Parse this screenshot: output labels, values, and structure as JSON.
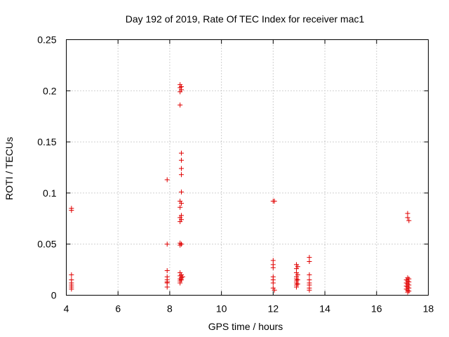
{
  "chart_data": {
    "type": "scatter",
    "title": "Day 192 of 2019, Rate Of TEC Index for receiver mac1",
    "xlabel": "GPS time / hours",
    "ylabel": "ROTI / TECUs",
    "xlim": [
      4,
      18
    ],
    "ylim": [
      0,
      0.25
    ],
    "x_ticks": [
      4,
      6,
      8,
      10,
      12,
      14,
      16,
      18
    ],
    "x_tick_labels": [
      "4",
      "6",
      "8",
      "10",
      "12",
      "14",
      "16",
      "18"
    ],
    "y_ticks": [
      0,
      0.05,
      0.1,
      0.15,
      0.2,
      0.25
    ],
    "y_tick_labels": [
      "0",
      "0.05",
      "0.1",
      "0.15",
      "0.2",
      "0.25"
    ],
    "grid": true,
    "marker": "+",
    "color": "#e00000",
    "series": [
      {
        "points": [
          [
            4.2,
            0.085
          ],
          [
            4.2,
            0.083
          ],
          [
            4.2,
            0.02
          ],
          [
            4.2,
            0.015
          ],
          [
            4.2,
            0.012
          ],
          [
            4.2,
            0.01
          ],
          [
            4.2,
            0.008
          ],
          [
            4.2,
            0.006
          ],
          [
            7.9,
            0.113
          ],
          [
            7.9,
            0.05
          ],
          [
            7.9,
            0.024
          ],
          [
            7.9,
            0.018
          ],
          [
            7.9,
            0.015
          ],
          [
            7.9,
            0.013
          ],
          [
            7.9,
            0.012
          ],
          [
            7.9,
            0.008
          ],
          [
            8.4,
            0.206
          ],
          [
            8.45,
            0.204
          ],
          [
            8.4,
            0.203
          ],
          [
            8.45,
            0.201
          ],
          [
            8.4,
            0.199
          ],
          [
            8.4,
            0.186
          ],
          [
            8.45,
            0.139
          ],
          [
            8.45,
            0.132
          ],
          [
            8.45,
            0.124
          ],
          [
            8.45,
            0.118
          ],
          [
            8.45,
            0.101
          ],
          [
            8.4,
            0.092
          ],
          [
            8.45,
            0.09
          ],
          [
            8.4,
            0.086
          ],
          [
            8.45,
            0.078
          ],
          [
            8.4,
            0.076
          ],
          [
            8.45,
            0.074
          ],
          [
            8.4,
            0.072
          ],
          [
            8.4,
            0.051
          ],
          [
            8.45,
            0.05
          ],
          [
            8.4,
            0.049
          ],
          [
            8.4,
            0.022
          ],
          [
            8.45,
            0.02
          ],
          [
            8.4,
            0.019
          ],
          [
            8.5,
            0.018
          ],
          [
            8.45,
            0.017
          ],
          [
            8.4,
            0.016
          ],
          [
            8.45,
            0.015
          ],
          [
            8.4,
            0.014
          ],
          [
            8.4,
            0.012
          ],
          [
            12.0,
            0.092
          ],
          [
            12.05,
            0.092
          ],
          [
            12.0,
            0.034
          ],
          [
            12.0,
            0.03
          ],
          [
            12.0,
            0.027
          ],
          [
            12.0,
            0.018
          ],
          [
            12.0,
            0.015
          ],
          [
            12.0,
            0.012
          ],
          [
            12.0,
            0.007
          ],
          [
            12.05,
            0.005
          ],
          [
            12.9,
            0.03
          ],
          [
            12.95,
            0.028
          ],
          [
            12.9,
            0.026
          ],
          [
            12.9,
            0.022
          ],
          [
            12.95,
            0.02
          ],
          [
            12.9,
            0.018
          ],
          [
            12.9,
            0.016
          ],
          [
            12.95,
            0.015
          ],
          [
            12.9,
            0.014
          ],
          [
            12.9,
            0.012
          ],
          [
            12.95,
            0.011
          ],
          [
            12.9,
            0.01
          ],
          [
            12.9,
            0.008
          ],
          [
            13.4,
            0.037
          ],
          [
            13.4,
            0.033
          ],
          [
            13.4,
            0.02
          ],
          [
            13.4,
            0.015
          ],
          [
            13.4,
            0.012
          ],
          [
            13.4,
            0.01
          ],
          [
            13.4,
            0.007
          ],
          [
            13.4,
            0.005
          ],
          [
            17.2,
            0.08
          ],
          [
            17.2,
            0.076
          ],
          [
            17.25,
            0.073
          ],
          [
            17.2,
            0.017
          ],
          [
            17.25,
            0.016
          ],
          [
            17.15,
            0.015
          ],
          [
            17.2,
            0.014
          ],
          [
            17.25,
            0.013
          ],
          [
            17.15,
            0.012
          ],
          [
            17.2,
            0.011
          ],
          [
            17.25,
            0.01
          ],
          [
            17.15,
            0.009
          ],
          [
            17.2,
            0.008
          ],
          [
            17.25,
            0.007
          ],
          [
            17.15,
            0.006
          ],
          [
            17.2,
            0.005
          ],
          [
            17.25,
            0.004
          ],
          [
            17.2,
            0.003
          ]
        ]
      }
    ]
  }
}
